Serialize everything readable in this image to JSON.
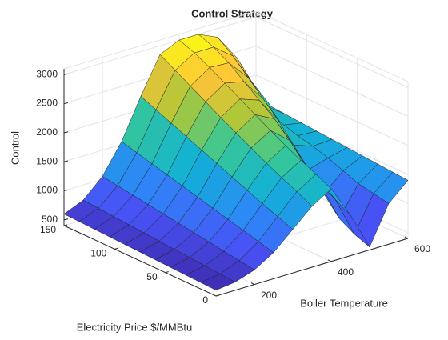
{
  "chart_data": {
    "type": "surface",
    "title": "Control Strategy",
    "xlabel": "Boiler Temperature",
    "ylabel": "Electricity Price $/MMBtu",
    "zlabel": "Control",
    "x": [
      100,
      150,
      200,
      250,
      300,
      350,
      400,
      450,
      500,
      550,
      600
    ],
    "y": [
      0,
      15,
      30,
      45,
      60,
      75,
      90,
      105,
      120,
      135,
      150
    ],
    "z": [
      [
        500,
        540,
        650,
        850,
        1150,
        1450,
        1650,
        1100,
        450,
        1100,
        1400
      ],
      [
        510,
        560,
        690,
        920,
        1250,
        1580,
        1780,
        1250,
        550,
        1150,
        1420
      ],
      [
        520,
        580,
        730,
        990,
        1350,
        1700,
        1900,
        1400,
        700,
        1200,
        1440
      ],
      [
        530,
        600,
        770,
        1060,
        1460,
        1830,
        2030,
        1600,
        1000,
        1300,
        1460
      ],
      [
        540,
        620,
        810,
        1130,
        1570,
        1970,
        2170,
        1900,
        1300,
        1400,
        1480
      ],
      [
        550,
        640,
        850,
        1200,
        1680,
        2110,
        2320,
        2150,
        1600,
        1480,
        1500
      ],
      [
        560,
        660,
        890,
        1270,
        1790,
        2250,
        2470,
        2350,
        1900,
        1540,
        1520
      ],
      [
        570,
        680,
        930,
        1340,
        1900,
        2400,
        2620,
        2550,
        2150,
        1600,
        1540
      ],
      [
        580,
        700,
        970,
        1410,
        2010,
        2550,
        2770,
        2750,
        2400,
        1800,
        1560
      ],
      [
        590,
        720,
        1010,
        1480,
        2120,
        2700,
        2900,
        2900,
        2650,
        2100,
        1580
      ],
      [
        600,
        740,
        1050,
        1550,
        2230,
        2850,
        3000,
        3000,
        2850,
        2400,
        1600
      ]
    ],
    "xlim": [
      100,
      600
    ],
    "ylim": [
      0,
      150
    ],
    "zlim": [
      400,
      3100
    ],
    "xticks": [
      200,
      400,
      600
    ],
    "yticks": [
      0,
      50,
      100,
      150
    ],
    "zticks": [
      500,
      1000,
      1500,
      2000,
      2500,
      3000
    ],
    "grid": true,
    "colormap": "parula",
    "edgecolor": "#222222"
  }
}
